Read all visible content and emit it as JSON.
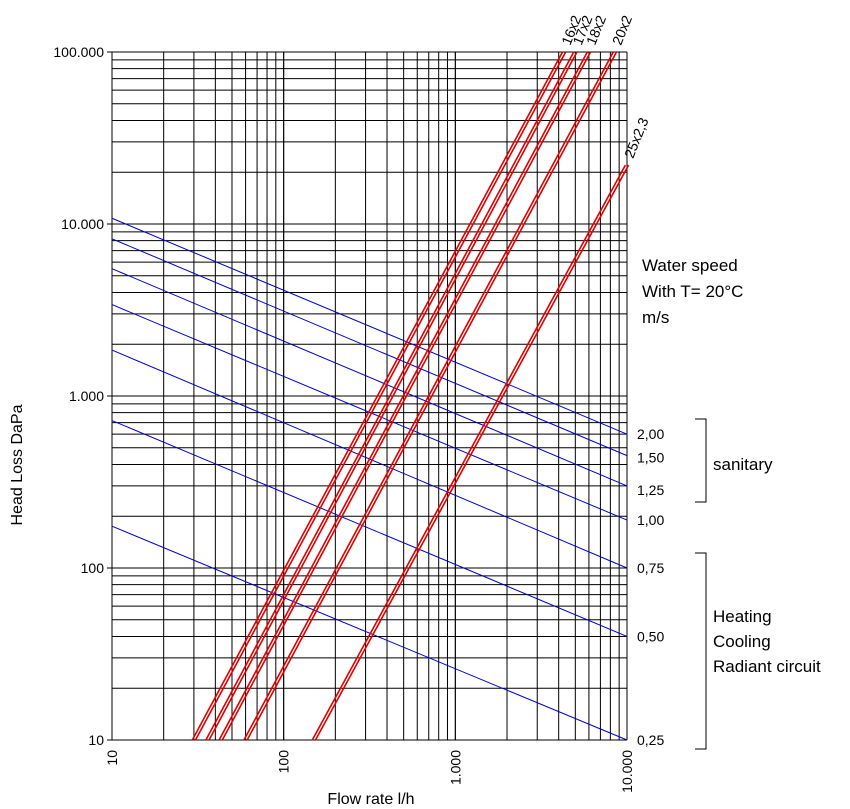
{
  "chart_data": {
    "type": "line",
    "title": "",
    "xlabel": "Flow rate l/h",
    "ylabel": "Head Loss DaPa",
    "x_scale": "log",
    "y_scale": "log",
    "xlim": [
      10,
      10000
    ],
    "ylim": [
      10,
      100000
    ],
    "grid": true,
    "x_ticks": [
      {
        "value": 10,
        "label": "10"
      },
      {
        "value": 100,
        "label": "100"
      },
      {
        "value": 1000,
        "label": "1.000"
      },
      {
        "value": 10000,
        "label": "10.000"
      }
    ],
    "y_ticks": [
      {
        "value": 10,
        "label": "10"
      },
      {
        "value": 100,
        "label": "100"
      },
      {
        "value": 1000,
        "label": "1.000"
      },
      {
        "value": 10000,
        "label": "10.000"
      },
      {
        "value": 100000,
        "label": "100.000"
      }
    ],
    "pipe_series": [
      {
        "name": "16x2",
        "color": "#e00000",
        "points": [
          [
            30,
            10
          ],
          [
            4300,
            100000
          ]
        ]
      },
      {
        "name": "17x2",
        "color": "#e00000",
        "points": [
          [
            36,
            10
          ],
          [
            5000,
            100000
          ]
        ]
      },
      {
        "name": "18x2",
        "color": "#e00000",
        "points": [
          [
            43,
            10
          ],
          [
            6000,
            100000
          ]
        ]
      },
      {
        "name": "20x2",
        "color": "#e00000",
        "points": [
          [
            60,
            10
          ],
          [
            8500,
            100000
          ]
        ]
      },
      {
        "name": "25x2,3",
        "color": "#e00000",
        "points": [
          [
            150,
            10
          ],
          [
            10000,
            22000
          ]
        ]
      }
    ],
    "speed_series": [
      {
        "name": "2,00",
        "color": "#0000cc",
        "points": [
          [
            10,
            10800
          ],
          [
            10000,
            600
          ]
        ]
      },
      {
        "name": "1,50",
        "color": "#0000cc",
        "points": [
          [
            10,
            8200
          ],
          [
            10000,
            450
          ]
        ]
      },
      {
        "name": "1,25",
        "color": "#0000cc",
        "points": [
          [
            10,
            5500
          ],
          [
            10000,
            300
          ]
        ]
      },
      {
        "name": "1,00",
        "color": "#0000cc",
        "points": [
          [
            10,
            3400
          ],
          [
            10000,
            190
          ]
        ]
      },
      {
        "name": "0,75",
        "color": "#0000cc",
        "points": [
          [
            10,
            1850
          ],
          [
            10000,
            100
          ]
        ]
      },
      {
        "name": "0,50",
        "color": "#0000cc",
        "points": [
          [
            10,
            720
          ],
          [
            10000,
            40
          ]
        ]
      },
      {
        "name": "0,25",
        "color": "#0000cc",
        "points": [
          [
            10,
            175
          ],
          [
            10000,
            10
          ]
        ]
      }
    ]
  },
  "annotations": {
    "water_speed": [
      "Water speed",
      "With T= 20°C",
      "m/s"
    ],
    "sanitary": "sanitary",
    "heating": [
      "Heating",
      "Cooling",
      "Radiant circuit"
    ]
  }
}
